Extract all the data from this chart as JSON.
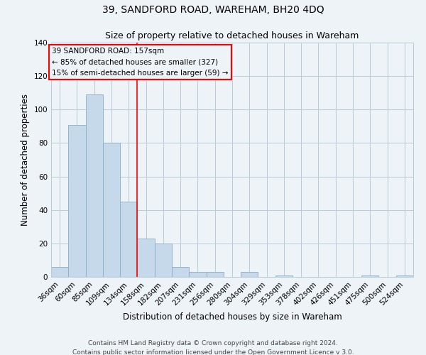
{
  "title": "39, SANDFORD ROAD, WAREHAM, BH20 4DQ",
  "subtitle": "Size of property relative to detached houses in Wareham",
  "xlabel": "Distribution of detached houses by size in Wareham",
  "ylabel": "Number of detached properties",
  "bar_values": [
    6,
    91,
    109,
    80,
    45,
    23,
    20,
    6,
    3,
    3,
    0,
    3,
    0,
    1,
    0,
    0,
    0,
    0,
    1,
    0,
    1
  ],
  "bar_labels": [
    "36sqm",
    "60sqm",
    "85sqm",
    "109sqm",
    "134sqm",
    "158sqm",
    "182sqm",
    "207sqm",
    "231sqm",
    "256sqm",
    "280sqm",
    "304sqm",
    "329sqm",
    "353sqm",
    "378sqm",
    "402sqm",
    "426sqm",
    "451sqm",
    "475sqm",
    "500sqm",
    "524sqm"
  ],
  "bar_color": "#c5d9ea",
  "bar_edge_color": "#8aaec8",
  "ylim": [
    0,
    140
  ],
  "yticks": [
    0,
    20,
    40,
    60,
    80,
    100,
    120,
    140
  ],
  "red_line_x": 4.5,
  "annotation_line1": "39 SANDFORD ROAD: 157sqm",
  "annotation_line2": "← 85% of detached houses are smaller (327)",
  "annotation_line3": "15% of semi-detached houses are larger (59) →",
  "footer_line1": "Contains HM Land Registry data © Crown copyright and database right 2024.",
  "footer_line2": "Contains public sector information licensed under the Open Government Licence v 3.0.",
  "background_color": "#eef3f8",
  "plot_bg_color": "#eef3f8",
  "grid_color": "#b8ccd8",
  "title_fontsize": 10,
  "subtitle_fontsize": 9,
  "axis_label_fontsize": 8.5,
  "tick_fontsize": 7.5,
  "footer_fontsize": 6.5
}
